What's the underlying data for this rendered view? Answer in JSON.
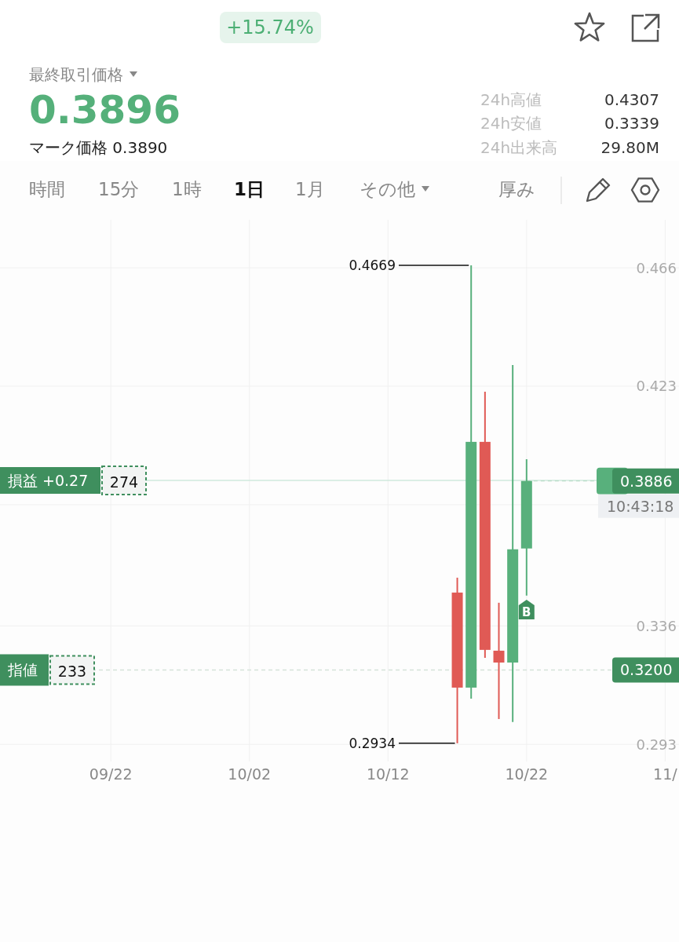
{
  "chart_data": {
    "type": "candlestick",
    "subtitle": "+15.74%",
    "x": [
      "--10-17",
      "--10-18",
      "--10-19",
      "--10-20",
      "--10-21",
      "--10-22"
    ],
    "ohlc": [
      [
        0.3481,
        0.3535,
        0.2934,
        0.3136
      ],
      [
        0.3136,
        0.4669,
        0.3096,
        0.4028
      ],
      [
        0.4028,
        0.421,
        0.3244,
        0.3273
      ],
      [
        0.327,
        0.3444,
        0.3022,
        0.3227
      ],
      [
        0.3227,
        0.4307,
        0.3011,
        0.3638
      ],
      [
        0.3641,
        0.3965,
        0.347,
        0.3886
      ]
    ],
    "colors": [
      "#e05a55",
      "#58b07c",
      "#e05a55",
      "#e05a55",
      "#58b07c",
      "#58b07c"
    ],
    "xlim": [
      "--09-14",
      "--11-02"
    ],
    "xticks": [
      {
        "value": "--09-22",
        "label": "09/22"
      },
      {
        "value": "--10-02",
        "label": "10/02"
      },
      {
        "value": "--10-12",
        "label": "10/12"
      },
      {
        "value": "--10-22",
        "label": "10/22"
      },
      {
        "value": "--11-01",
        "label": "11/"
      }
    ],
    "ylim": [
      0.2868,
      0.4834
    ],
    "yticks": [
      0.466,
      0.423,
      {
        "value": 0.38,
        "label": null
      },
      0.336,
      0.293
    ],
    "grid": true,
    "ref_lines": [
      {
        "axis": "y",
        "value": 0.3888,
        "label": "損益 +0.27",
        "color": "#cfe8dc",
        "line_style": "solid"
      },
      {
        "axis": "y",
        "value": 0.3886,
        "label": "0.3886",
        "color": "#b9dcc7",
        "line_style": "dashed"
      },
      {
        "axis": "y",
        "value": 0.32,
        "label": "0.3200",
        "color": "#d5e3da",
        "line_style": "dashed"
      }
    ],
    "annotations": [
      "最終取引価格",
      "0.3896",
      "マーク価格 0.3890",
      "24h高値",
      "0.4307",
      "24h安値",
      "0.3339",
      "24h出来高",
      "29.80M",
      "時間",
      "15分",
      "1時",
      "1日",
      "1月",
      "その他",
      "厚み",
      {
        "text": "0.4669",
        "x": "--10-18",
        "y": 0.4669
      },
      {
        "text": "0.2934",
        "x": "--10-17",
        "y": 0.2934
      },
      {
        "text": "10:43:18",
        "y": 0.3886
      },
      {
        "text": "274",
        "y": 0.3888
      },
      {
        "text": "指値",
        "y": 0.32
      },
      {
        "text": "233",
        "y": 0.32
      },
      {
        "text": "B",
        "x": "--10-22",
        "y": 0.3415
      }
    ]
  }
}
